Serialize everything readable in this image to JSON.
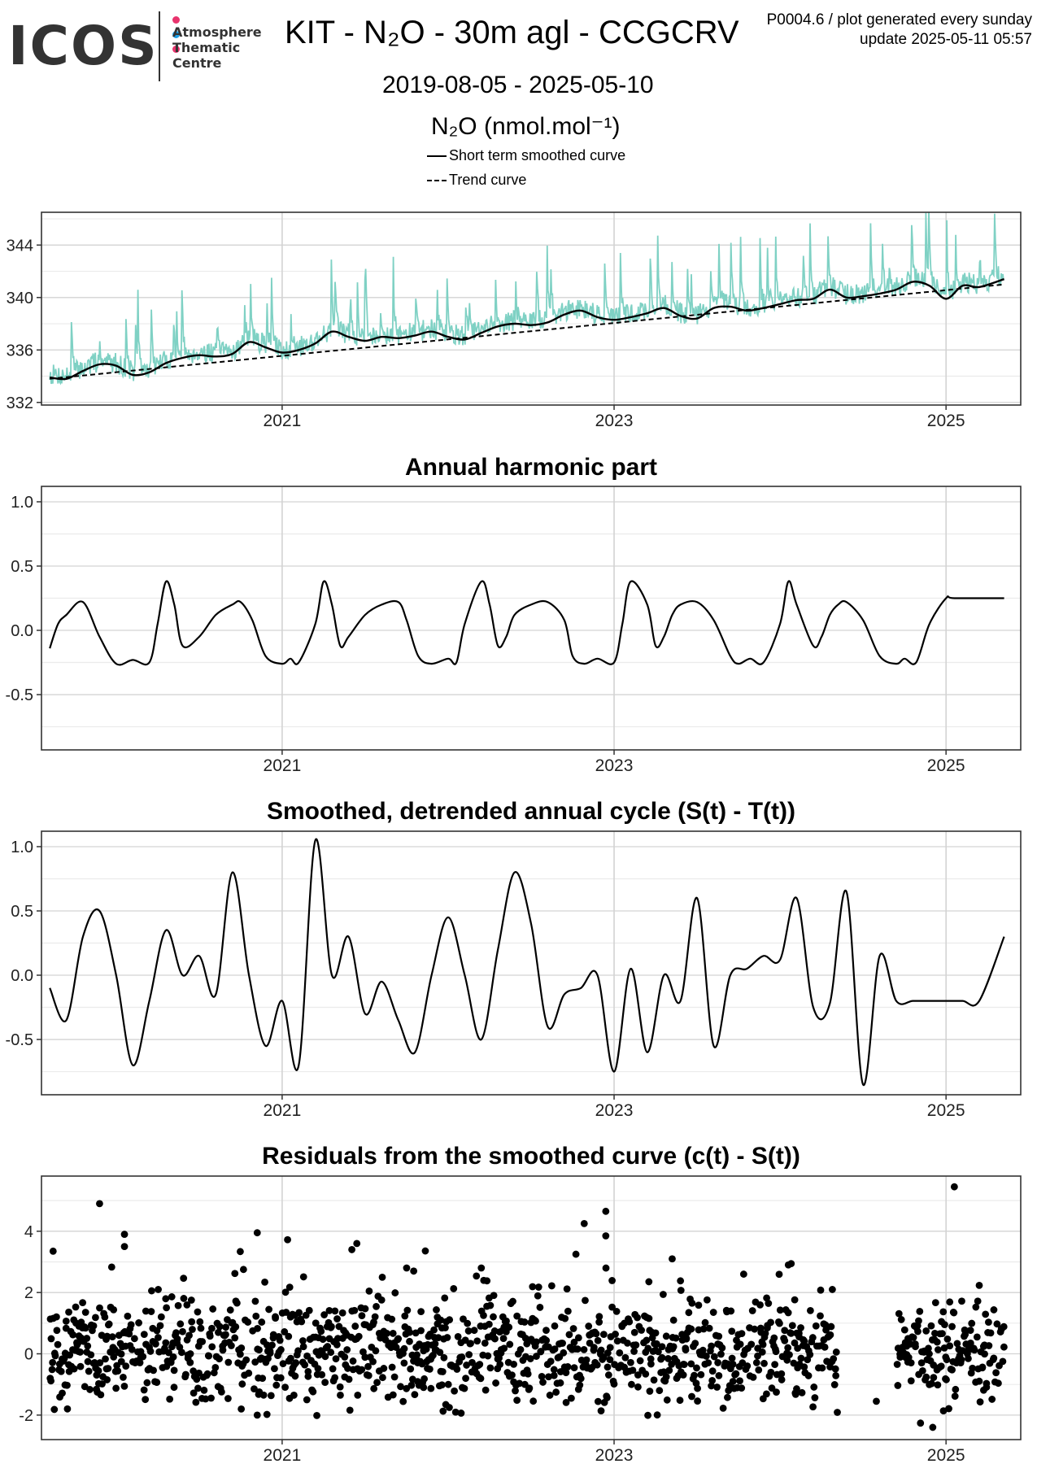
{
  "header": {
    "logo_text": "ICOS",
    "logo_subtitle": [
      "Atmosphere",
      "Thematic",
      "Centre"
    ],
    "logo_dot_colors": [
      "#e8336d",
      "#1e9ee6",
      "#e8336d"
    ],
    "title": "KIT - N₂O - 30m agl - CCGCRV",
    "meta_line1": "P0004.6 / plot generated every sunday",
    "meta_line2": "update  2025-05-11 05:57",
    "date_range": "2019-08-05 - 2025-05-10",
    "y_label": "N₂O (nmol.mol⁻¹)",
    "legend": [
      {
        "label": "Short term smoothed curve",
        "style": "solid"
      },
      {
        "label": "Trend curve",
        "style": "dashed"
      }
    ]
  },
  "colors": {
    "observations": "#7fd1c4",
    "line": "#000000",
    "grid_major": "#d3d3d3",
    "grid_minor": "#ebebeb"
  },
  "chart_data": [
    {
      "type": "line",
      "title": "",
      "xlim": [
        2019.55,
        2025.45
      ],
      "ylim": [
        331.8,
        346.5
      ],
      "x_ticks": [
        2021,
        2023,
        2025
      ],
      "x_tick_labels": [
        "2021",
        "2023",
        "2025"
      ],
      "y_ticks": [
        332,
        336,
        340,
        344
      ],
      "y_tick_labels": [
        "332",
        "336",
        "340",
        "344"
      ],
      "trend": {
        "name": "Trend curve",
        "x": [
          2019.6,
          2025.35
        ],
        "y": [
          333.8,
          341.0
        ]
      },
      "smoothed": {
        "name": "Short term smoothed curve",
        "x": [
          2019.6,
          2019.7,
          2019.8,
          2019.9,
          2020.0,
          2020.1,
          2020.2,
          2020.3,
          2020.4,
          2020.5,
          2020.6,
          2020.7,
          2020.8,
          2020.9,
          2021.0,
          2021.1,
          2021.2,
          2021.3,
          2021.4,
          2021.5,
          2021.6,
          2021.7,
          2021.8,
          2021.9,
          2022.0,
          2022.1,
          2022.2,
          2022.3,
          2022.4,
          2022.5,
          2022.6,
          2022.7,
          2022.8,
          2022.9,
          2023.0,
          2023.1,
          2023.2,
          2023.3,
          2023.4,
          2023.5,
          2023.6,
          2023.7,
          2023.8,
          2023.9,
          2024.0,
          2024.1,
          2024.2,
          2024.3,
          2024.4,
          2024.5,
          2024.6,
          2024.7,
          2024.8,
          2024.9,
          2025.0,
          2025.1,
          2025.2,
          2025.35
        ],
        "y": [
          333.9,
          333.8,
          334.4,
          334.9,
          334.8,
          334.1,
          334.3,
          335.0,
          335.4,
          335.6,
          335.5,
          335.7,
          336.6,
          336.2,
          335.8,
          336.0,
          336.5,
          337.4,
          337.0,
          336.7,
          337.0,
          336.9,
          337.1,
          337.4,
          337.0,
          336.8,
          337.3,
          337.8,
          338.0,
          337.9,
          338.1,
          338.7,
          339.0,
          338.5,
          338.3,
          338.5,
          338.8,
          339.2,
          338.6,
          338.4,
          339.2,
          339.3,
          339.0,
          339.2,
          339.5,
          339.8,
          339.9,
          340.6,
          340.0,
          340.1,
          340.3,
          340.6,
          341.2,
          340.9,
          339.9,
          340.9,
          340.8,
          341.4
        ]
      }
    },
    {
      "type": "line",
      "title": "Annual harmonic part",
      "xlim": [
        2019.55,
        2025.45
      ],
      "ylim": [
        -0.93,
        1.12
      ],
      "x_ticks": [
        2021,
        2023,
        2025
      ],
      "x_tick_labels": [
        "2021",
        "2023",
        "2025"
      ],
      "y_ticks": [
        1.0,
        0.5,
        0.0,
        -0.5
      ],
      "y_tick_labels": [
        "1.0",
        "0.5",
        "0.0",
        "-0.5"
      ],
      "series": [
        {
          "x": [
            2019.6,
            2019.65,
            2019.7,
            2019.8,
            2019.9,
            2020.0,
            2020.1,
            2020.2,
            2020.25,
            2020.3,
            2020.35,
            2020.4,
            2020.5,
            2020.6,
            2020.7,
            2020.75,
            2020.82,
            2020.9,
            2021.0,
            2021.05,
            2021.1,
            2021.2,
            2021.25,
            2021.3,
            2021.35,
            2021.4,
            2021.5,
            2021.6,
            2021.7,
            2021.75,
            2021.82,
            2021.9,
            2022.0,
            2022.05,
            2022.1,
            2022.2,
            2022.25,
            2022.3,
            2022.35,
            2022.4,
            2022.5,
            2022.6,
            2022.7,
            2022.75,
            2022.82,
            2022.9,
            2023.0,
            2023.05,
            2023.1,
            2023.2,
            2023.25,
            2023.3,
            2023.35,
            2023.4,
            2023.5,
            2023.6,
            2023.7,
            2023.75,
            2023.82,
            2023.9,
            2024.0,
            2024.05,
            2024.1,
            2024.2,
            2024.25,
            2024.3,
            2024.35,
            2024.4,
            2024.5,
            2024.6,
            2024.7,
            2024.75,
            2024.82,
            2024.9,
            2025.0,
            2025.05,
            2025.1,
            2025.2,
            2025.25,
            2025.35
          ],
          "y": [
            -0.14,
            0.05,
            0.12,
            0.22,
            -0.05,
            -0.26,
            -0.23,
            -0.25,
            0.05,
            0.38,
            0.2,
            -0.12,
            -0.05,
            0.12,
            0.2,
            0.22,
            0.08,
            -0.2,
            -0.26,
            -0.22,
            -0.25,
            0.05,
            0.38,
            0.2,
            -0.12,
            -0.05,
            0.12,
            0.2,
            0.22,
            0.08,
            -0.2,
            -0.26,
            -0.22,
            -0.25,
            0.05,
            0.38,
            0.2,
            -0.12,
            -0.05,
            0.12,
            0.2,
            0.22,
            0.08,
            -0.2,
            -0.26,
            -0.22,
            -0.25,
            0.05,
            0.38,
            0.2,
            -0.12,
            -0.05,
            0.12,
            0.2,
            0.22,
            0.08,
            -0.2,
            -0.26,
            -0.22,
            -0.25,
            0.05,
            0.38,
            0.2,
            -0.12,
            -0.05,
            0.12,
            0.2,
            0.22,
            0.08,
            -0.2,
            -0.26,
            -0.22,
            -0.25,
            0.05,
            0.25,
            0.25,
            0.25,
            0.25,
            0.25,
            0.25
          ]
        }
      ]
    },
    {
      "type": "line",
      "title": "Smoothed, detrended annual cycle (S(t) - T(t))",
      "xlim": [
        2019.55,
        2025.45
      ],
      "ylim": [
        -0.93,
        1.12
      ],
      "x_ticks": [
        2021,
        2023,
        2025
      ],
      "x_tick_labels": [
        "2021",
        "2023",
        "2025"
      ],
      "y_ticks": [
        1.0,
        0.5,
        0.0,
        -0.5
      ],
      "y_tick_labels": [
        "1.0",
        "0.5",
        "0.0",
        "-0.5"
      ],
      "series": [
        {
          "x": [
            2019.6,
            2019.7,
            2019.8,
            2019.9,
            2020.0,
            2020.1,
            2020.2,
            2020.3,
            2020.4,
            2020.5,
            2020.6,
            2020.7,
            2020.8,
            2020.9,
            2021.0,
            2021.1,
            2021.2,
            2021.3,
            2021.4,
            2021.5,
            2021.6,
            2021.7,
            2021.8,
            2021.9,
            2022.0,
            2022.1,
            2022.2,
            2022.3,
            2022.4,
            2022.5,
            2022.6,
            2022.7,
            2022.8,
            2022.9,
            2023.0,
            2023.1,
            2023.2,
            2023.3,
            2023.4,
            2023.5,
            2023.6,
            2023.7,
            2023.8,
            2023.9,
            2024.0,
            2024.1,
            2024.2,
            2024.3,
            2024.4,
            2024.5,
            2024.6,
            2024.7,
            2024.8,
            2024.9,
            2025.0,
            2025.1,
            2025.2,
            2025.35
          ],
          "y": [
            -0.1,
            -0.35,
            0.3,
            0.5,
            0.0,
            -0.7,
            -0.2,
            0.35,
            0.0,
            0.15,
            -0.15,
            0.8,
            0.0,
            -0.55,
            -0.2,
            -0.7,
            1.05,
            0.0,
            0.3,
            -0.3,
            -0.05,
            -0.35,
            -0.6,
            0.0,
            0.45,
            0.0,
            -0.5,
            0.2,
            0.8,
            0.4,
            -0.4,
            -0.15,
            -0.1,
            0.0,
            -0.75,
            0.05,
            -0.6,
            0.0,
            -0.2,
            0.6,
            -0.55,
            0.0,
            0.05,
            0.15,
            0.12,
            0.6,
            -0.25,
            -0.22,
            0.65,
            -0.85,
            0.15,
            -0.2,
            -0.2,
            -0.2,
            -0.2,
            -0.2,
            -0.2,
            0.3
          ]
        }
      ]
    },
    {
      "type": "scatter",
      "title": "Residuals from the smoothed curve (c(t) - S(t))",
      "xlim": [
        2019.55,
        2025.45
      ],
      "ylim": [
        -2.8,
        5.8
      ],
      "x_ticks": [
        2021,
        2023,
        2025
      ],
      "x_tick_labels": [
        "2021",
        "2023",
        "2025"
      ],
      "y_ticks": [
        4,
        2,
        0,
        -2
      ],
      "y_tick_labels": [
        "4",
        "2",
        "0",
        "-2"
      ],
      "gaps": [
        [
          2020.8,
          2020.82
        ],
        [
          2024.35,
          2024.7
        ]
      ],
      "outliers": [
        {
          "x": 2019.9,
          "y": 4.9
        },
        {
          "x": 2020.05,
          "y": 3.9
        },
        {
          "x": 2020.05,
          "y": 3.5
        },
        {
          "x": 2020.85,
          "y": 3.95
        },
        {
          "x": 2020.85,
          "y": -2.0
        },
        {
          "x": 2021.45,
          "y": 3.6
        },
        {
          "x": 2021.42,
          "y": 3.4
        },
        {
          "x": 2021.75,
          "y": 2.8
        },
        {
          "x": 2022.2,
          "y": 2.8
        },
        {
          "x": 2022.77,
          "y": 3.25
        },
        {
          "x": 2022.95,
          "y": 4.65
        },
        {
          "x": 2022.95,
          "y": 3.85
        },
        {
          "x": 2022.82,
          "y": 4.25
        },
        {
          "x": 2023.35,
          "y": 3.1
        },
        {
          "x": 2024.05,
          "y": 2.9
        },
        {
          "x": 2025.05,
          "y": 5.45
        },
        {
          "x": 2024.92,
          "y": -2.4
        },
        {
          "x": 2024.58,
          "y": -1.55
        }
      ]
    }
  ]
}
